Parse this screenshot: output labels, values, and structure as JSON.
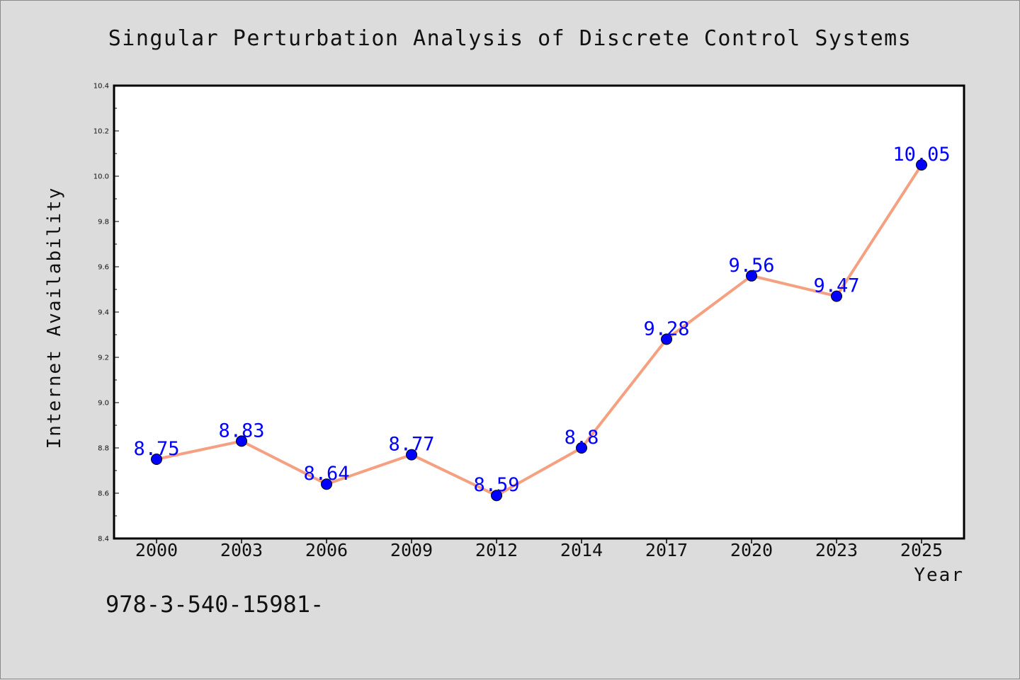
{
  "footnote": "978-3-540-15981-",
  "colors": {
    "background": "#dcdcdc",
    "plot_area": "#ffffff",
    "line": "#f4a081",
    "marker": "#0000ff",
    "label": "#0000ff"
  },
  "chart_data": {
    "type": "line",
    "title": "Singular Perturbation Analysis of Discrete Control Systems",
    "xlabel": "Year",
    "ylabel": "Internet Availability",
    "categories": [
      "2000",
      "2003",
      "2006",
      "2009",
      "2012",
      "2014",
      "2017",
      "2020",
      "2023",
      "2025"
    ],
    "series": [
      {
        "values": [
          8.75,
          8.83,
          8.64,
          8.77,
          8.59,
          8.8,
          9.28,
          9.56,
          9.47,
          10.05
        ],
        "labels": [
          "8.75",
          "8.83",
          "8.64",
          "8.77",
          "8.59",
          "8.8",
          "9.28",
          "9.56",
          "9.47",
          "10.05"
        ]
      }
    ],
    "ylim": [
      8.4,
      10.4
    ],
    "yticks": [
      "8.4",
      "8.6",
      "8.8",
      "9.0",
      "9.2",
      "9.4",
      "9.6",
      "9.8",
      "10.0",
      "10.2",
      "10.4"
    ],
    "grid": false,
    "legend": "none"
  }
}
